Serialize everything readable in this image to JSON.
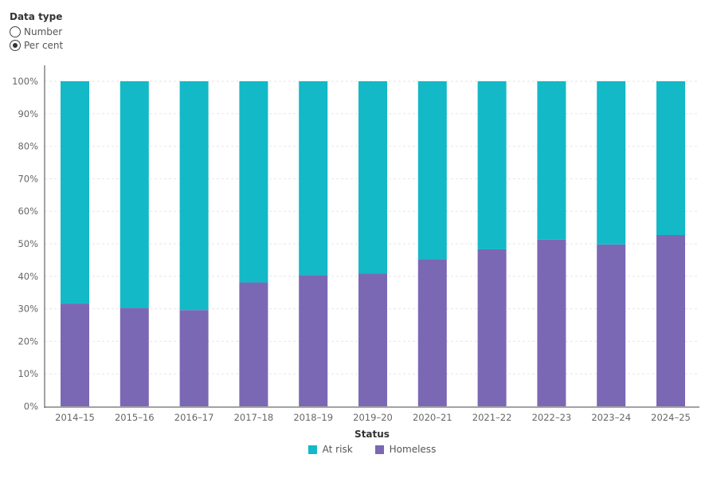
{
  "controls": {
    "title": "Data type",
    "options": [
      {
        "label": "Number",
        "selected": false
      },
      {
        "label": "Per cent",
        "selected": true
      }
    ]
  },
  "colors": {
    "at_risk": "#13b9c6",
    "homeless": "#7b68b4",
    "grid": "#e6e6e6",
    "axis": "#444444"
  },
  "legend": {
    "title": "Status",
    "items": [
      {
        "label": "At risk",
        "color": "#13b9c6"
      },
      {
        "label": "Homeless",
        "color": "#7b68b4"
      }
    ]
  },
  "chart_data": {
    "type": "bar",
    "stacked": true,
    "categories": [
      "2014–15",
      "2015–16",
      "2016–17",
      "2017–18",
      "2018–19",
      "2019–20",
      "2020–21",
      "2021–22",
      "2022–23",
      "2023–24",
      "2024–25"
    ],
    "series": [
      {
        "name": "Homeless",
        "values": [
          31.6,
          30.3,
          29.6,
          38.1,
          40.4,
          40.8,
          45.2,
          48.3,
          51.3,
          49.8,
          52.7
        ]
      },
      {
        "name": "At risk",
        "values": [
          68.4,
          69.7,
          70.4,
          61.9,
          59.6,
          59.2,
          54.8,
          51.7,
          48.7,
          50.2,
          47.3
        ]
      }
    ],
    "yticks": [
      "0%",
      "10%",
      "20%",
      "30%",
      "40%",
      "50%",
      "60%",
      "70%",
      "80%",
      "90%",
      "100%"
    ],
    "ylim": [
      0,
      100
    ],
    "grid": true,
    "legend_position": "bottom"
  }
}
